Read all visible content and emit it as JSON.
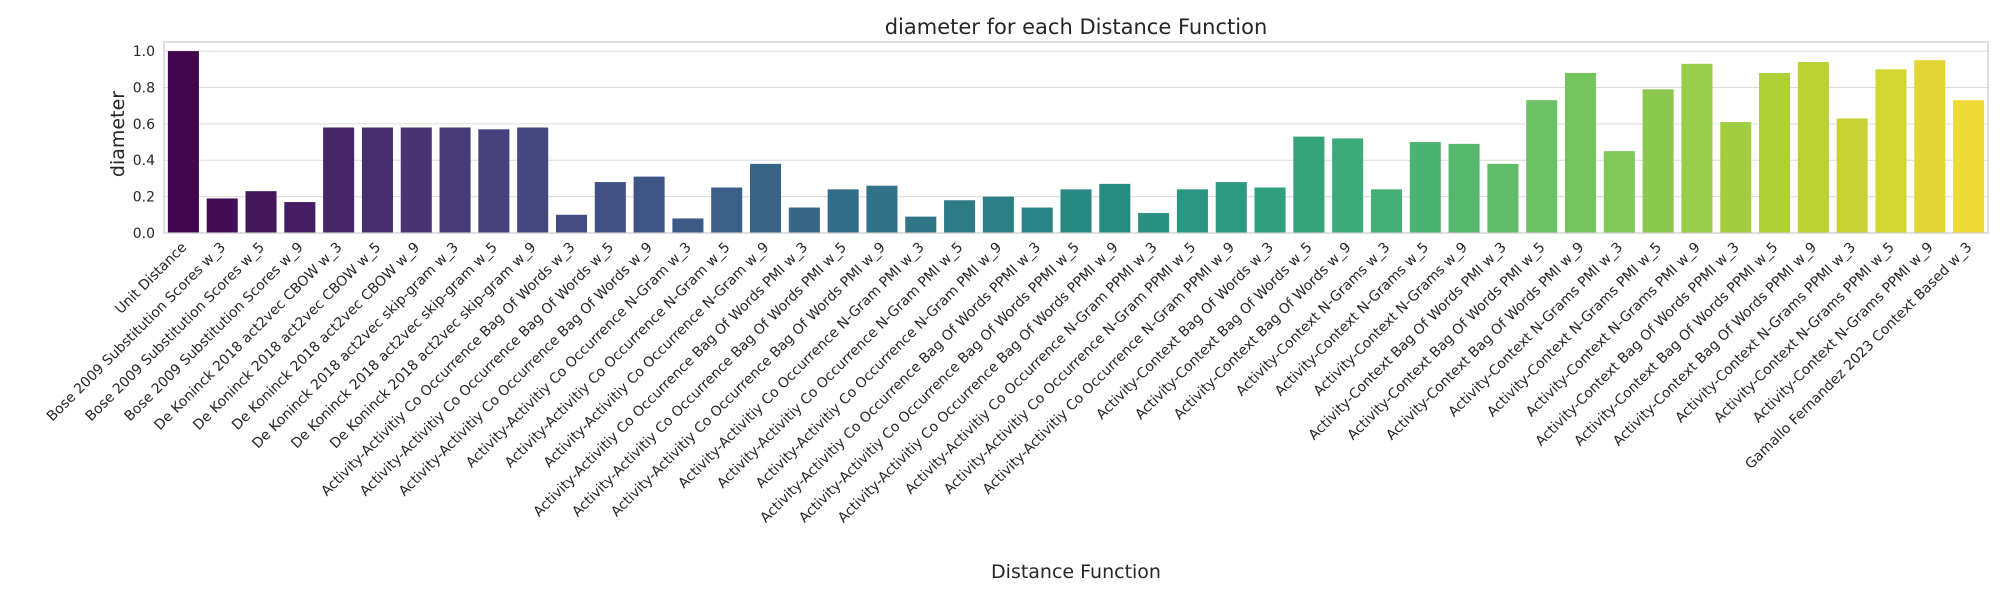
{
  "chart_data": {
    "type": "bar",
    "title": "diameter for each Distance Function",
    "xlabel": "Distance Function",
    "ylabel": "diameter",
    "ylim": [
      0,
      1.05
    ],
    "yticks": [
      "0.0",
      "0.2",
      "0.4",
      "0.6",
      "0.8",
      "1.0"
    ],
    "grid": true,
    "palette": "viridis",
    "categories": [
      "Unit Distance",
      "Bose 2009 Substitution Scores w_3",
      "Bose 2009 Substitution Scores w_5",
      "Bose 2009 Substitution Scores w_9",
      "De Koninck 2018 act2vec CBOW w_3",
      "De Koninck 2018 act2vec CBOW w_5",
      "De Koninck 2018 act2vec CBOW w_9",
      "De Koninck 2018 act2vec skip-gram w_3",
      "De Koninck 2018 act2vec skip-gram w_5",
      "De Koninck 2018 act2vec skip-gram w_9",
      "Activity-Activitiy Co Occurrence Bag Of Words w_3",
      "Activity-Activitiy Co Occurrence Bag Of Words w_5",
      "Activity-Activitiy Co Occurrence Bag Of Words w_9",
      "Activity-Activitiy Co Occurrence N-Gram w_3",
      "Activity-Activitiy Co Occurrence N-Gram w_5",
      "Activity-Activitiy Co Occurrence N-Gram w_9",
      "Activity-Activitiy Co Occurrence Bag Of Words PMI w_3",
      "Activity-Activitiy Co Occurrence Bag Of Words PMI w_5",
      "Activity-Activitiy Co Occurrence Bag Of Words PMI w_9",
      "Activity-Activitiy Co Occurrence N-Gram PMI w_3",
      "Activity-Activitiy Co Occurrence N-Gram PMI w_5",
      "Activity-Activitiy Co Occurrence N-Gram PMI w_9",
      "Activity-Activitiy Co Occurrence Bag Of Words PPMI w_3",
      "Activity-Activitiy Co Occurrence Bag Of Words PPMI w_5",
      "Activity-Activitiy Co Occurrence Bag Of Words PPMI w_9",
      "Activity-Activitiy Co Occurrence N-Gram PPMI w_3",
      "Activity-Activitiy Co Occurrence N-Gram PPMI w_5",
      "Activity-Activitiy Co Occurrence N-Gram PPMI w_9",
      "Activity-Context Bag Of Words w_3",
      "Activity-Context Bag Of Words w_5",
      "Activity-Context Bag Of Words w_9",
      "Activity-Context N-Grams w_3",
      "Activity-Context N-Grams w_5",
      "Activity-Context N-Grams w_9",
      "Activity-Context Bag Of Words PMI w_3",
      "Activity-Context Bag Of Words PMI w_5",
      "Activity-Context Bag Of Words PMI w_9",
      "Activity-Context N-Grams PMI w_3",
      "Activity-Context N-Grams PMI w_5",
      "Activity-Context N-Grams PMI w_9",
      "Activity-Context Bag Of Words PPMI w_3",
      "Activity-Context Bag Of Words PPMI w_5",
      "Activity-Context Bag Of Words PPMI w_9",
      "Activity-Context N-Grams PPMI w_3",
      "Activity-Context N-Grams PPMI w_5",
      "Activity-Context N-Grams PPMI w_9",
      "Gamallo Fernandez 2023 Context Based w_3"
    ],
    "values": [
      1.0,
      0.19,
      0.23,
      0.17,
      0.58,
      0.58,
      0.58,
      0.58,
      0.57,
      0.58,
      0.1,
      0.28,
      0.31,
      0.08,
      0.25,
      0.38,
      0.14,
      0.24,
      0.26,
      0.09,
      0.18,
      0.2,
      0.14,
      0.24,
      0.27,
      0.11,
      0.24,
      0.28,
      0.25,
      0.53,
      0.52,
      0.24,
      0.5,
      0.49,
      0.38,
      0.73,
      0.88,
      0.45,
      0.79,
      0.93,
      0.61,
      0.88,
      0.94,
      0.63,
      0.9,
      0.95,
      0.73
    ]
  }
}
